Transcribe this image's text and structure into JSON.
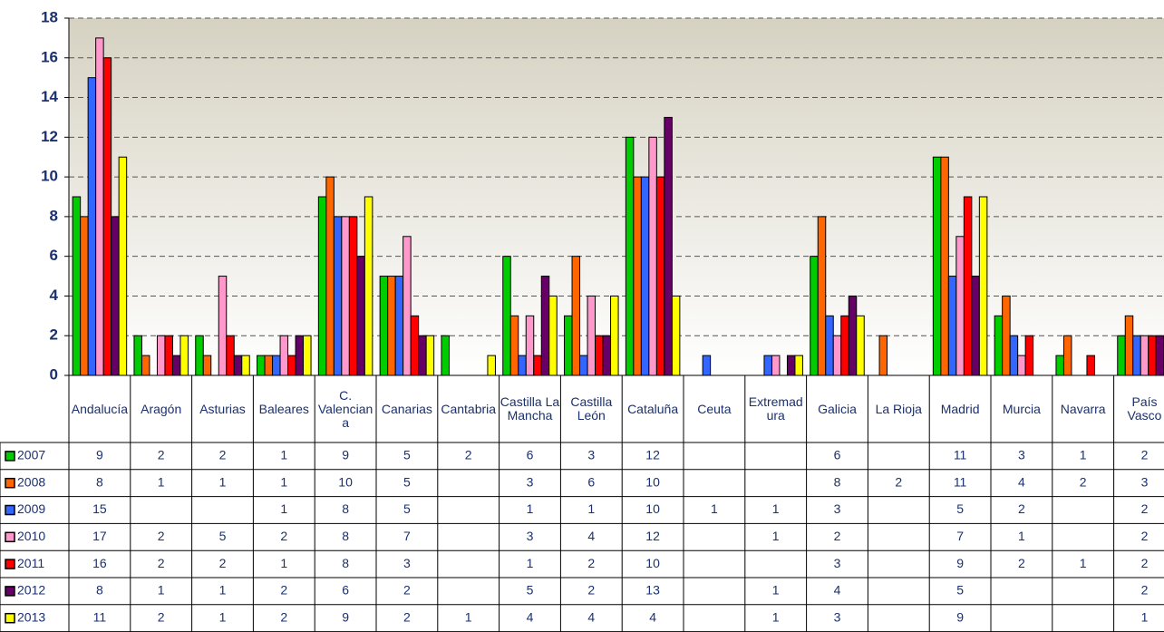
{
  "chart_data": {
    "type": "bar",
    "categories": [
      "Andalucía",
      "Aragón",
      "Asturias",
      "Baleares",
      "C. Valenciana",
      "Canarias",
      "Cantabria",
      "Castilla La Mancha",
      "Castilla León",
      "Cataluña",
      "Ceuta",
      "Extremadura",
      "Galicia",
      "La Rioja",
      "Madrid",
      "Murcia",
      "Navarra",
      "País Vasco"
    ],
    "series": [
      {
        "name": "2007",
        "color": "#00cc00",
        "values": [
          9,
          2,
          2,
          1,
          9,
          5,
          2,
          6,
          3,
          12,
          null,
          null,
          6,
          null,
          11,
          3,
          1,
          2
        ]
      },
      {
        "name": "2008",
        "color": "#ff6600",
        "values": [
          8,
          1,
          1,
          1,
          10,
          5,
          null,
          3,
          6,
          10,
          null,
          null,
          8,
          2,
          11,
          4,
          2,
          3
        ]
      },
      {
        "name": "2009",
        "color": "#3366ff",
        "values": [
          15,
          null,
          null,
          1,
          8,
          5,
          null,
          1,
          1,
          10,
          1,
          1,
          3,
          null,
          5,
          2,
          null,
          2
        ]
      },
      {
        "name": "2010",
        "color": "#ff99cc",
        "values": [
          17,
          2,
          5,
          2,
          8,
          7,
          null,
          3,
          4,
          12,
          null,
          1,
          2,
          null,
          7,
          1,
          null,
          2
        ]
      },
      {
        "name": "2011",
        "color": "#ff0000",
        "values": [
          16,
          2,
          2,
          1,
          8,
          3,
          null,
          1,
          2,
          10,
          null,
          null,
          3,
          null,
          9,
          2,
          1,
          2
        ]
      },
      {
        "name": "2012",
        "color": "#660066",
        "values": [
          8,
          1,
          1,
          2,
          6,
          2,
          null,
          5,
          2,
          13,
          null,
          1,
          4,
          null,
          5,
          null,
          null,
          2
        ]
      },
      {
        "name": "2013",
        "color": "#ffff00",
        "values": [
          11,
          2,
          1,
          2,
          9,
          2,
          1,
          4,
          4,
          4,
          null,
          1,
          3,
          null,
          9,
          null,
          null,
          1
        ]
      }
    ],
    "ylim": [
      0,
      18
    ],
    "yticks": [
      0,
      2,
      4,
      6,
      8,
      10,
      12,
      14,
      16,
      18
    ],
    "grid": true
  }
}
